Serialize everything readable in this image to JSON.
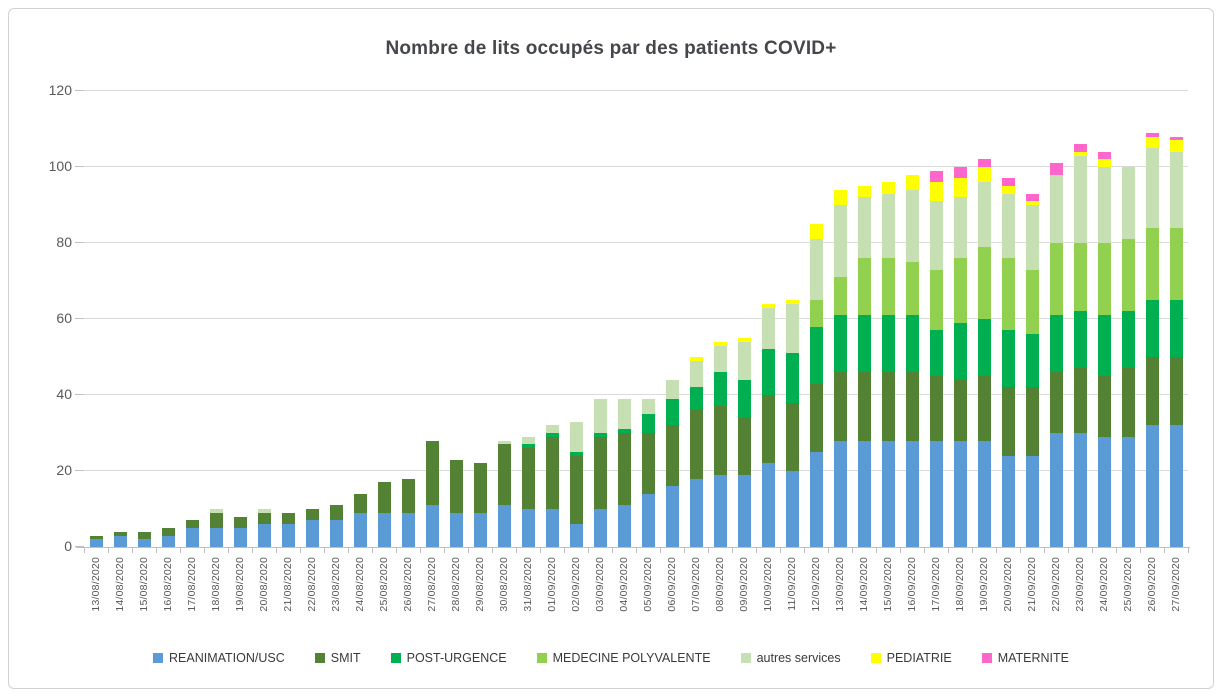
{
  "title": "Nombre de lits occupés par des patients COVID+",
  "colors": {
    "gridline": "#d9d9d9",
    "axis_line": "#bfbfbf",
    "axis_text": "#595959",
    "title_text": "#44474b",
    "legend_text": "#3a3a3a",
    "frame_border": "#d2d2d2"
  },
  "chart_data": {
    "type": "bar",
    "stacked": true,
    "title": "Nombre de lits occupés par des patients COVID+",
    "xlabel": "",
    "ylabel": "",
    "ylim": [
      0,
      120
    ],
    "yticks": [
      0,
      20,
      40,
      60,
      80,
      100,
      120
    ],
    "grid": true,
    "legend_position": "bottom",
    "categories": [
      "13/08/2020",
      "14/08/2020",
      "15/08/2020",
      "16/08/2020",
      "17/08/2020",
      "18/08/2020",
      "19/08/2020",
      "20/08/2020",
      "21/08/2020",
      "22/08/2020",
      "23/08/2020",
      "24/08/2020",
      "25/08/2020",
      "26/08/2020",
      "27/08/2020",
      "28/08/2020",
      "29/08/2020",
      "30/08/2020",
      "31/08/2020",
      "01/09/2020",
      "02/09/2020",
      "03/09/2020",
      "04/09/2020",
      "05/09/2020",
      "06/09/2020",
      "07/09/2020",
      "08/09/2020",
      "09/09/2020",
      "10/09/2020",
      "11/09/2020",
      "12/09/2020",
      "13/09/2020",
      "14/09/2020",
      "15/09/2020",
      "16/09/2020",
      "17/09/2020",
      "18/09/2020",
      "19/09/2020",
      "20/09/2020",
      "21/09/2020",
      "22/09/2020",
      "23/09/2020",
      "24/09/2020",
      "25/09/2020",
      "26/09/2020",
      "27/09/2020"
    ],
    "series": [
      {
        "name": "REANIMATION/USC",
        "color": "#5B9BD5",
        "values": [
          2,
          3,
          2,
          3,
          5,
          5,
          5,
          6,
          6,
          7,
          7,
          9,
          9,
          9,
          11,
          9,
          9,
          11,
          10,
          10,
          6,
          10,
          11,
          14,
          16,
          18,
          19,
          19,
          22,
          20,
          25,
          28,
          28,
          28,
          28,
          28,
          28,
          28,
          24,
          24,
          30,
          30,
          29,
          29,
          32,
          32
        ]
      },
      {
        "name": "SMIT",
        "color": "#548235",
        "values": [
          1,
          1,
          2,
          2,
          2,
          4,
          3,
          3,
          3,
          3,
          4,
          5,
          8,
          9,
          17,
          14,
          13,
          16,
          16,
          19,
          18,
          19,
          19,
          16,
          16,
          18,
          18,
          15,
          18,
          18,
          18,
          18,
          18,
          18,
          18,
          17,
          16,
          17,
          18,
          18,
          16,
          17,
          16,
          18,
          18,
          18
        ]
      },
      {
        "name": "POST-URGENCE",
        "color": "#00B050",
        "values": [
          0,
          0,
          0,
          0,
          0,
          0,
          0,
          0,
          0,
          0,
          0,
          0,
          0,
          0,
          0,
          0,
          0,
          0,
          1,
          1,
          1,
          1,
          1,
          5,
          7,
          6,
          9,
          10,
          12,
          13,
          15,
          15,
          15,
          15,
          15,
          12,
          15,
          15,
          15,
          14,
          15,
          15,
          16,
          15,
          15,
          15
        ]
      },
      {
        "name": "MEDECINE POLYVALENTE",
        "color": "#92D050",
        "values": [
          0,
          0,
          0,
          0,
          0,
          0,
          0,
          0,
          0,
          0,
          0,
          0,
          0,
          0,
          0,
          0,
          0,
          0,
          0,
          0,
          0,
          0,
          0,
          0,
          0,
          0,
          0,
          0,
          0,
          0,
          7,
          10,
          15,
          15,
          14,
          16,
          17,
          19,
          19,
          17,
          19,
          18,
          19,
          19,
          19,
          19
        ]
      },
      {
        "name": "autres services",
        "color": "#C6E0B4",
        "values": [
          0,
          0,
          0,
          0,
          0,
          1,
          0,
          1,
          0,
          0,
          0,
          0,
          0,
          0,
          0,
          0,
          0,
          1,
          2,
          2,
          8,
          9,
          8,
          4,
          5,
          7,
          7,
          10,
          11,
          13,
          16,
          19,
          16,
          17,
          19,
          18,
          16,
          17,
          17,
          17,
          18,
          23,
          20,
          19,
          21,
          20
        ]
      },
      {
        "name": "PEDIATRIE",
        "color": "#FFFF00",
        "values": [
          0,
          0,
          0,
          0,
          0,
          0,
          0,
          0,
          0,
          0,
          0,
          0,
          0,
          0,
          0,
          0,
          0,
          0,
          0,
          0,
          0,
          0,
          0,
          0,
          0,
          1,
          1,
          1,
          1,
          1,
          4,
          4,
          3,
          3,
          4,
          5,
          5,
          4,
          2,
          1,
          0,
          1,
          2,
          0,
          3,
          3
        ]
      },
      {
        "name": "MATERNITE",
        "color": "#FF66CC",
        "values": [
          0,
          0,
          0,
          0,
          0,
          0,
          0,
          0,
          0,
          0,
          0,
          0,
          0,
          0,
          0,
          0,
          0,
          0,
          0,
          0,
          0,
          0,
          0,
          0,
          0,
          0,
          0,
          0,
          0,
          0,
          0,
          0,
          0,
          0,
          0,
          3,
          3,
          2,
          2,
          2,
          3,
          2,
          2,
          0,
          1,
          1
        ]
      }
    ]
  }
}
